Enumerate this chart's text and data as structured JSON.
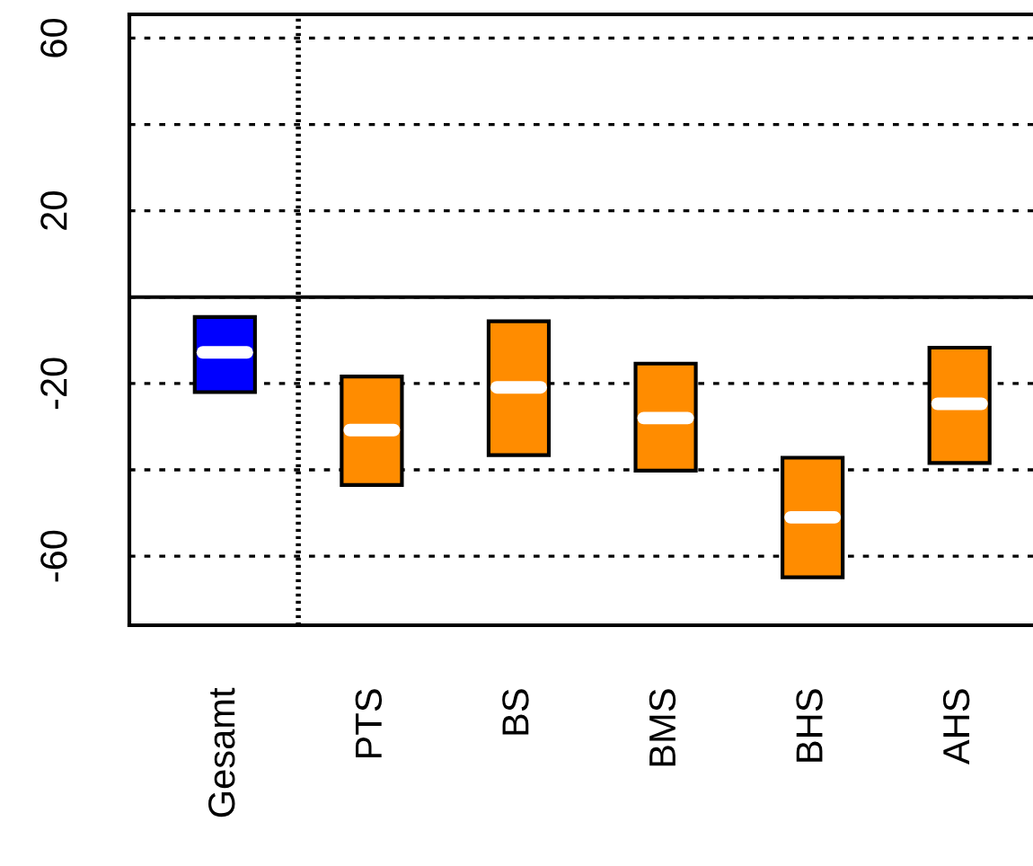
{
  "chart_data": {
    "type": "box",
    "categories": [
      "Gesamt",
      "PTS",
      "BS",
      "BMS",
      "BHS",
      "AHS"
    ],
    "boxes": [
      {
        "q1": -22,
        "median": -12.8,
        "q3": -4.6
      },
      {
        "q1": -43.5,
        "median": -30.8,
        "q3": -18.4
      },
      {
        "q1": -36.6,
        "median": -20.9,
        "q3": -5.6
      },
      {
        "q1": -40.2,
        "median": -28,
        "q3": -15.4
      },
      {
        "q1": -64.9,
        "median": -51,
        "q3": -37.2
      },
      {
        "q1": -38.4,
        "median": -24.7,
        "q3": -11.7
      }
    ],
    "colors": [
      "#0000ff",
      "#ff8c00",
      "#ff8c00",
      "#ff8c00",
      "#ff8c00",
      "#ff8c00"
    ],
    "ylim": [
      -76,
      65.5
    ],
    "yticks": [
      {
        "value": -60,
        "label": "-60"
      },
      {
        "value": -40,
        "label": null
      },
      {
        "value": -20,
        "label": "-20"
      },
      {
        "value": 0,
        "label": null
      },
      20,
      {
        "value": 40,
        "label": null
      },
      60
    ],
    "grid": "y",
    "ref_lines": [
      {
        "axis": "y",
        "value": 0,
        "line_style": "solid",
        "color": "#000000"
      }
    ]
  }
}
